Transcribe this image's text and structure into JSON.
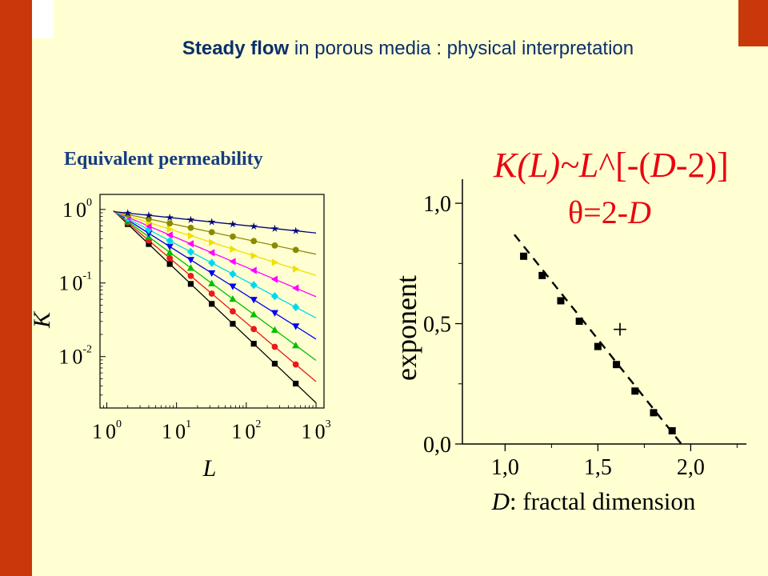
{
  "header": {
    "title_bold": "Steady flow",
    "title_rest": " in porous media : physical interpretation"
  },
  "subtitle": "Equivalent permeability",
  "formula": {
    "line1_a": "K(L)~L",
    "line1_b": "^",
    "line1_c": "[-(",
    "line1_d": "D",
    "line1_e": "-2)]",
    "line2_a": "θ=2-",
    "line2_b": "D"
  },
  "colors": {
    "sidebar": "#c8380a",
    "background": "#ffffd2",
    "title": "#0b2f6b",
    "formula": "#e8060f"
  },
  "chart_data": [
    {
      "type": "line",
      "scale": "log-log",
      "xlabel": "L",
      "ylabel": "K",
      "x_ticks": [
        {
          "base": "1",
          "exp": "0",
          "value": 1
        },
        {
          "base": "1",
          "exp": "1",
          "value": 10
        },
        {
          "base": "1",
          "exp": "2",
          "value": 100
        },
        {
          "base": "1",
          "exp": "3",
          "value": 1000
        }
      ],
      "y_ticks": [
        {
          "base": "1",
          "exp": "0",
          "value": 1
        },
        {
          "base": "1",
          "exp": "-1",
          "value": 0.1
        },
        {
          "base": "1",
          "exp": "-2",
          "value": 0.01
        }
      ],
      "xlim": [
        0.8,
        1300
      ],
      "ylim": [
        0.002,
        1.6
      ],
      "x": [
        2,
        4,
        8,
        16,
        32,
        64,
        128,
        256,
        512
      ],
      "series": [
        {
          "color": "#000000",
          "marker": "square",
          "slope": -0.9
        },
        {
          "color": "#ea1a1a",
          "marker": "circle",
          "slope": -0.8
        },
        {
          "color": "#00c000",
          "marker": "triangle-up",
          "slope": -0.7
        },
        {
          "color": "#0000ee",
          "marker": "triangle-down",
          "slope": -0.6
        },
        {
          "color": "#00d8f0",
          "marker": "diamond",
          "slope": -0.5
        },
        {
          "color": "#ff00ff",
          "marker": "triangle-left",
          "slope": -0.4
        },
        {
          "color": "#f0e000",
          "marker": "triangle-right",
          "slope": -0.3
        },
        {
          "color": "#8a8a00",
          "marker": "circle",
          "slope": -0.2
        },
        {
          "color": "#000080",
          "marker": "star",
          "slope": -0.1
        }
      ]
    },
    {
      "type": "scatter",
      "xlabel_italic": "D",
      "xlabel_rest": ": fractal dimension",
      "ylabel": "exponent",
      "xlim": [
        0.77,
        2.3
      ],
      "ylim": [
        0,
        1.1
      ],
      "x_ticks": [
        "1,0",
        "1,5",
        "2,0"
      ],
      "x_tick_values": [
        1.0,
        1.5,
        2.0
      ],
      "y_ticks": [
        "0,0",
        "0,5",
        "1,0"
      ],
      "y_tick_values": [
        0,
        0.5,
        1.0
      ],
      "points": [
        {
          "x": 1.1,
          "y": 0.78
        },
        {
          "x": 1.2,
          "y": 0.7
        },
        {
          "x": 1.3,
          "y": 0.595
        },
        {
          "x": 1.4,
          "y": 0.51
        },
        {
          "x": 1.5,
          "y": 0.405
        },
        {
          "x": 1.6,
          "y": 0.33
        },
        {
          "x": 1.7,
          "y": 0.22
        },
        {
          "x": 1.8,
          "y": 0.13
        },
        {
          "x": 1.9,
          "y": 0.055
        }
      ],
      "fit_line": {
        "x": [
          1.05,
          1.95
        ],
        "y": [
          0.87,
          0.0
        ]
      },
      "annotation": "+"
    }
  ]
}
